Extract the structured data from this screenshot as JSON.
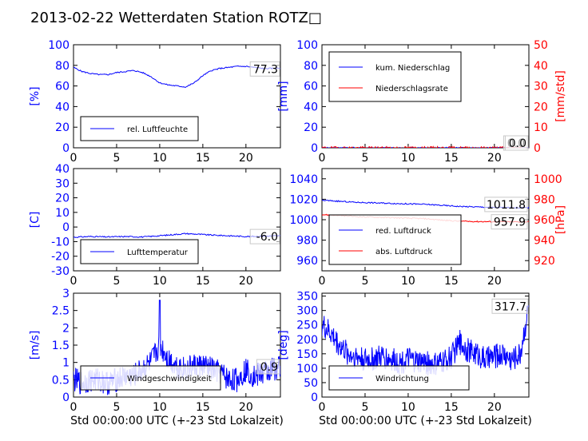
{
  "title": "2013-02-22 Wetterdaten Station ROTZ□",
  "colors": {
    "primary": "#0000ff",
    "secondary": "#ff0000",
    "axis": "#000000"
  },
  "chart_data": [
    {
      "id": "humidity",
      "type": "line",
      "ylabel": "[%]",
      "xlabel": "",
      "xlim": [
        0,
        24
      ],
      "ylim": [
        0,
        100
      ],
      "yticks": [
        0,
        20,
        40,
        60,
        80,
        100
      ],
      "xticks": [
        0,
        5,
        10,
        15,
        20
      ],
      "legend": {
        "position": "lower-left",
        "entries": [
          {
            "name": "rel. Luftfeuchte",
            "color": "#0000ff"
          }
        ]
      },
      "last_value_label": "77.3",
      "series": [
        {
          "name": "rel. Luftfeuchte",
          "color": "#0000ff",
          "axis": "left",
          "x": [
            0,
            1,
            2,
            3,
            4,
            5,
            6,
            7,
            8,
            9,
            10,
            11,
            12,
            13,
            14,
            15,
            16,
            17,
            18,
            19,
            20,
            21,
            22,
            23,
            24
          ],
          "y": [
            78,
            74,
            72,
            71,
            71,
            73,
            74,
            75,
            73,
            69,
            63,
            61,
            60,
            59,
            63,
            70,
            75,
            77,
            78,
            79,
            79,
            78,
            77,
            77,
            77.3
          ]
        }
      ]
    },
    {
      "id": "precipitation",
      "type": "line",
      "ylabel": "[mm]",
      "ylabel_right": "[mm/std]",
      "xlabel": "",
      "xlim": [
        0,
        24
      ],
      "ylim": [
        0,
        100
      ],
      "ylim_right": [
        0,
        50
      ],
      "yticks": [
        0,
        20,
        40,
        60,
        80,
        100
      ],
      "yticks_right": [
        0,
        10,
        20,
        30,
        40,
        50
      ],
      "xticks": [
        0,
        5,
        10,
        15,
        20
      ],
      "legend": {
        "position": "upper-left",
        "entries": [
          {
            "name": "kum. Niederschlag",
            "color": "#0000ff"
          },
          {
            "name": "Niederschlagsrate",
            "color": "#ff0000"
          }
        ]
      },
      "last_value_label": "0.0",
      "last_value_label_2": "0.0",
      "series": [
        {
          "name": "kum. Niederschlag",
          "color": "#0000ff",
          "axis": "left",
          "x": [
            0,
            24
          ],
          "y": [
            0,
            0
          ]
        },
        {
          "name": "Niederschlagsrate",
          "color": "#ff0000",
          "axis": "right",
          "x": [
            0,
            24
          ],
          "y": [
            0,
            0
          ]
        }
      ]
    },
    {
      "id": "temperature",
      "type": "line",
      "ylabel": "[C]",
      "xlabel": "",
      "xlim": [
        0,
        24
      ],
      "ylim": [
        -30,
        40
      ],
      "yticks": [
        -30,
        -20,
        -10,
        0,
        10,
        20,
        30,
        40
      ],
      "xticks": [
        0,
        5,
        10,
        15,
        20
      ],
      "legend": {
        "position": "lower-left",
        "entries": [
          {
            "name": "Lufttemperatur",
            "color": "#0000ff"
          }
        ]
      },
      "last_value_label": "-6.0",
      "series": [
        {
          "name": "Lufttemperatur",
          "color": "#0000ff",
          "axis": "left",
          "x": [
            0,
            2,
            4,
            6,
            8,
            10,
            12,
            13,
            14,
            16,
            18,
            20,
            22,
            24
          ],
          "y": [
            -7,
            -6.5,
            -6.8,
            -6.5,
            -6.8,
            -6,
            -5,
            -4.5,
            -4.8,
            -5.5,
            -6,
            -6.5,
            -6.3,
            -6
          ]
        }
      ]
    },
    {
      "id": "pressure",
      "type": "line",
      "ylabel": "",
      "ylabel_right": "[hPa]",
      "xlabel": "",
      "xlim": [
        0,
        24
      ],
      "ylim": [
        950,
        1050
      ],
      "ylim_right": [
        910,
        1010
      ],
      "yticks": [
        960,
        980,
        1000,
        1020,
        1040
      ],
      "yticks_right": [
        920,
        940,
        960,
        980,
        1000
      ],
      "xticks": [
        0,
        5,
        10,
        15,
        20
      ],
      "legend": {
        "position": "lower-left",
        "entries": [
          {
            "name": "red. Luftdruck",
            "color": "#0000ff"
          },
          {
            "name": "abs. Luftdruck",
            "color": "#ff0000"
          }
        ]
      },
      "last_value_label": "1011.8",
      "last_value_label_2": "957.9",
      "series": [
        {
          "name": "red. Luftdruck",
          "color": "#0000ff",
          "axis": "left",
          "x": [
            0,
            2,
            4,
            6,
            8,
            10,
            12,
            14,
            16,
            18,
            20,
            22,
            24
          ],
          "y": [
            1019,
            1018,
            1017,
            1016.5,
            1016,
            1015.5,
            1015,
            1014,
            1013,
            1012.5,
            1012,
            1011.8,
            1011.8
          ]
        },
        {
          "name": "abs. Luftdruck",
          "color": "#ff0000",
          "axis": "right",
          "x": [
            0,
            2,
            4,
            6,
            8,
            10,
            12,
            14,
            16,
            18,
            20,
            22,
            24
          ],
          "y": [
            965,
            964,
            963,
            962.5,
            962,
            961.5,
            961,
            959.5,
            958.5,
            958.2,
            958,
            957.9,
            957.9
          ]
        }
      ]
    },
    {
      "id": "windspeed",
      "type": "line",
      "ylabel": "[m/s]",
      "xlabel": "Std 00:00:00 UTC (+-23 Std Lokalzeit)",
      "xlim": [
        0,
        24
      ],
      "ylim": [
        0,
        3
      ],
      "yticks": [
        0,
        0.5,
        1.0,
        1.5,
        2.0,
        2.5,
        3.0
      ],
      "xticks": [
        0,
        5,
        10,
        15,
        20
      ],
      "legend": {
        "position": "lower-left",
        "entries": [
          {
            "name": "Windgeschwindigkeit",
            "color": "#0000ff"
          }
        ]
      },
      "last_value_label": "0.9",
      "noisy": true,
      "series": [
        {
          "name": "Windgeschwindigkeit",
          "color": "#0000ff",
          "axis": "left",
          "x": [
            0,
            1,
            2,
            3,
            4,
            5,
            6,
            7,
            8,
            9,
            10,
            11,
            12,
            13,
            14,
            15,
            16,
            17,
            18,
            19,
            20,
            21,
            22,
            23,
            24
          ],
          "y": [
            0.5,
            0.4,
            0.5,
            0.5,
            0.4,
            0.5,
            0.6,
            0.6,
            0.8,
            1.0,
            1.5,
            1.1,
            0.9,
            0.8,
            0.9,
            0.9,
            0.8,
            0.7,
            0.5,
            0.5,
            0.8,
            0.6,
            0.7,
            0.8,
            0.9
          ],
          "peak": {
            "x": 10,
            "y": 2.8
          }
        }
      ]
    },
    {
      "id": "winddirection",
      "type": "line",
      "ylabel": "[deg]",
      "xlabel": "Std 00:00:00 UTC (+-23 Std Lokalzeit)",
      "xlim": [
        0,
        24
      ],
      "ylim": [
        0,
        360
      ],
      "yticks": [
        0,
        50,
        100,
        150,
        200,
        250,
        300,
        350
      ],
      "xticks": [
        0,
        5,
        10,
        15,
        20
      ],
      "legend": {
        "position": "lower-left",
        "entries": [
          {
            "name": "Windrichtung",
            "color": "#0000ff"
          }
        ]
      },
      "last_value_label": "317.7",
      "noisy": true,
      "series": [
        {
          "name": "Windrichtung",
          "color": "#0000ff",
          "axis": "left",
          "x": [
            0,
            1,
            2,
            3,
            4,
            5,
            6,
            7,
            8,
            9,
            10,
            11,
            12,
            13,
            14,
            15,
            16,
            17,
            18,
            19,
            20,
            21,
            22,
            23,
            24
          ],
          "y": [
            250,
            220,
            180,
            150,
            140,
            130,
            130,
            140,
            130,
            120,
            130,
            120,
            120,
            110,
            120,
            140,
            190,
            160,
            150,
            130,
            140,
            150,
            130,
            150,
            317.7
          ]
        }
      ]
    }
  ]
}
